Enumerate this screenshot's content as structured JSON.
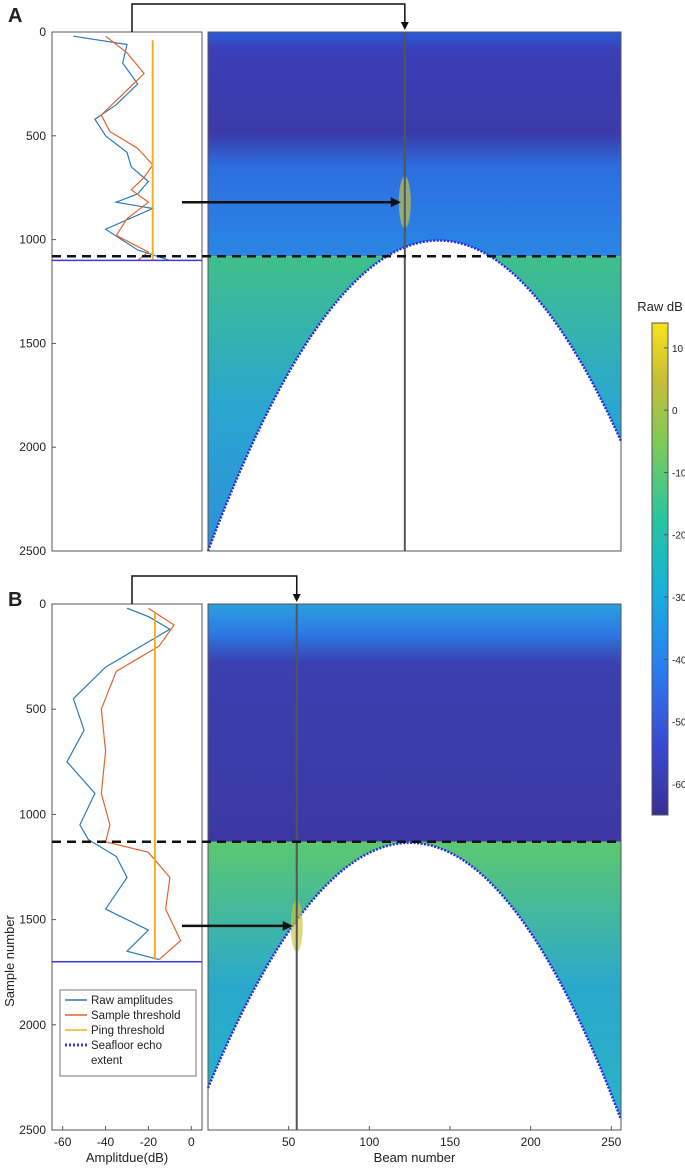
{
  "chart_data": [
    {
      "type": "line",
      "panel": "A",
      "role": "amplitude-profile",
      "xlabel": "",
      "ylabel": "",
      "xlim": [
        -65,
        5
      ],
      "ylim": [
        2500,
        0
      ],
      "yticks": [
        "0",
        "500",
        "1000",
        "1500",
        "2000",
        "2500"
      ],
      "xticks": [],
      "series": [
        {
          "name": "Raw amplitudes",
          "color": "#2b7bba",
          "x": [
            -55,
            -30,
            -32,
            -25,
            -35,
            -45,
            -40,
            -30,
            -28,
            -20,
            -25,
            -35,
            -18,
            -40,
            -25,
            -10
          ],
          "y": [
            20,
            60,
            150,
            250,
            350,
            420,
            500,
            580,
            650,
            720,
            780,
            820,
            850,
            950,
            1050,
            1100
          ]
        },
        {
          "name": "Sample threshold",
          "color": "#e0642e",
          "x": [
            -40,
            -30,
            -22,
            -32,
            -42,
            -38,
            -25,
            -18,
            -22,
            -28,
            -20,
            -30,
            -35,
            -20,
            -25
          ],
          "y": [
            20,
            100,
            200,
            300,
            400,
            480,
            560,
            640,
            700,
            760,
            820,
            900,
            980,
            1060,
            1100
          ]
        },
        {
          "name": "Ping threshold",
          "color": "#f0b020",
          "x": [
            -18,
            -18
          ],
          "y": [
            40,
            1100
          ]
        },
        {
          "name": "Seafloor echo extent",
          "color": "#3a3ae0",
          "x": [
            -65,
            5
          ],
          "y": [
            1100,
            1100
          ]
        }
      ]
    },
    {
      "type": "heatmap",
      "panel": "A",
      "role": "water-column-image",
      "xlabel": "",
      "xlim": [
        0,
        256
      ],
      "ylim": [
        2500,
        0
      ],
      "xticks": [],
      "highlighted_beam": 122,
      "seafloor_min_sample": 1080,
      "seafloor_at_edges": [
        2500,
        1970
      ],
      "feature_sample": 820
    },
    {
      "type": "line",
      "panel": "B",
      "role": "amplitude-profile",
      "xlabel": "Amplitdue(dB)",
      "ylabel": "Sample number",
      "xlim": [
        -65,
        5
      ],
      "ylim": [
        2500,
        0
      ],
      "yticks": [
        "0",
        "500",
        "1000",
        "1500",
        "2000",
        "2500"
      ],
      "xticks": [
        "-60",
        "-40",
        "-20",
        "0"
      ],
      "series": [
        {
          "name": "Raw amplitudes",
          "color": "#2b7bba",
          "x": [
            -30,
            -20,
            -10,
            -40,
            -55,
            -50,
            -58,
            -45,
            -52,
            -48,
            -35,
            -30,
            -40,
            -20,
            -30,
            -15
          ],
          "y": [
            20,
            60,
            120,
            300,
            450,
            600,
            750,
            900,
            1050,
            1120,
            1200,
            1300,
            1450,
            1550,
            1650,
            1690
          ]
        },
        {
          "name": "Sample threshold",
          "color": "#e0642e",
          "x": [
            -20,
            -8,
            -15,
            -35,
            -42,
            -40,
            -42,
            -38,
            -40,
            -20,
            -10,
            -12,
            -5,
            -15
          ],
          "y": [
            20,
            100,
            200,
            320,
            500,
            700,
            900,
            1050,
            1130,
            1180,
            1300,
            1450,
            1600,
            1690
          ]
        },
        {
          "name": "Ping threshold",
          "color": "#f0b020",
          "x": [
            -17,
            -17
          ],
          "y": [
            40,
            1690
          ]
        },
        {
          "name": "Seafloor echo extent",
          "color": "#3a3ae0",
          "x": [
            -65,
            5
          ],
          "y": [
            1700,
            1700
          ]
        }
      ],
      "legend_position": "bottom-left",
      "legend_entries": [
        "Raw amplitudes",
        "Sample threshold",
        "Ping threshold",
        "Seafloor echo",
        "extent"
      ]
    },
    {
      "type": "heatmap",
      "panel": "B",
      "role": "water-column-image",
      "xlabel": "Beam number",
      "xlim": [
        0,
        256
      ],
      "ylim": [
        2500,
        0
      ],
      "xticks": [
        "50",
        "100",
        "150",
        "200",
        "250"
      ],
      "highlighted_beam": 55,
      "seafloor_min_sample": 1130,
      "seafloor_at_edges": [
        2300,
        2450
      ],
      "feature_sample": 1530
    },
    {
      "type": "colorbar",
      "label": "Raw dB",
      "range": [
        -65,
        14
      ],
      "ticks": [
        "10",
        "0",
        "-10",
        "-20",
        "-30",
        "-40",
        "-50",
        "-60"
      ],
      "tick_values": [
        10,
        0,
        -10,
        -20,
        -30,
        -40,
        -50,
        -60
      ],
      "colors": [
        "#3b2e93",
        "#3a49d1",
        "#2a7ef2",
        "#19aede",
        "#27c5a0",
        "#7acb5a",
        "#c6bd38",
        "#f9e31c"
      ]
    }
  ],
  "panel_labels": {
    "a": "A",
    "b": "B"
  }
}
